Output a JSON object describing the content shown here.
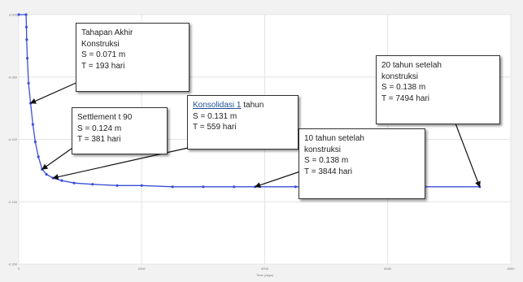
{
  "chart_data": {
    "type": "line",
    "title": "",
    "xlabel": "Time (days)",
    "ylabel": "",
    "xlim": [
      0,
      8000
    ],
    "ylim": [
      -0.2,
      0.0
    ],
    "y_inverted": false,
    "x_ticks": [
      {
        "value": 0,
        "label": "0"
      },
      {
        "value": 2000,
        "label": "2000"
      },
      {
        "value": 4000,
        "label": "4000"
      },
      {
        "value": 6000,
        "label": "6000"
      },
      {
        "value": 8000,
        "label": "8000"
      }
    ],
    "y_ticks": [
      {
        "value": 0.0,
        "label": "0.000"
      },
      {
        "value": -0.05,
        "label": "-0.050"
      },
      {
        "value": -0.1,
        "label": "-0.100"
      },
      {
        "value": -0.15,
        "label": "-0.150"
      },
      {
        "value": -0.2,
        "label": "-0.200"
      }
    ],
    "grid": true,
    "series": [
      {
        "color": "#3b4fd6",
        "x": [
          0,
          120,
          125,
          130,
          140,
          160,
          193,
          230,
          270,
          320,
          381,
          450,
          559,
          700,
          900,
          1200,
          1600,
          2000,
          2500,
          3000,
          3500,
          3844,
          4500,
          5500,
          6500,
          7494
        ],
        "y": [
          0.0,
          0.0,
          -0.01,
          -0.02,
          -0.035,
          -0.055,
          -0.071,
          -0.088,
          -0.102,
          -0.114,
          -0.124,
          -0.128,
          -0.131,
          -0.133,
          -0.135,
          -0.136,
          -0.137,
          -0.137,
          -0.138,
          -0.138,
          -0.138,
          -0.138,
          -0.138,
          -0.138,
          -0.138,
          -0.138
        ]
      }
    ],
    "annotations": [
      {
        "lines": [
          "Tahapan Akhir",
          "Konstruksi",
          "S = 0.071 m",
          "T = 193 hari"
        ],
        "target": {
          "x": 193,
          "y": -0.071
        }
      },
      {
        "lines": [
          "Settlement t 90",
          "S = 0.124 m",
          "T = 381 hari"
        ],
        "target": {
          "x": 381,
          "y": -0.124
        }
      },
      {
        "lines": [
          "Konsolidasi 1 tahun",
          "S = 0.131 m",
          "T = 559 hari"
        ],
        "target": {
          "x": 559,
          "y": -0.131
        }
      },
      {
        "lines": [
          "10 tahun setelah",
          "konstruksi",
          "S = 0.138 m",
          "T = 3844 hari"
        ],
        "target": {
          "x": 3844,
          "y": -0.138
        }
      },
      {
        "lines": [
          "20 tahun setelah",
          "konstruksi",
          "S = 0.138 m",
          "T = 7494 hari"
        ],
        "target": {
          "x": 7494,
          "y": -0.138
        }
      }
    ]
  }
}
